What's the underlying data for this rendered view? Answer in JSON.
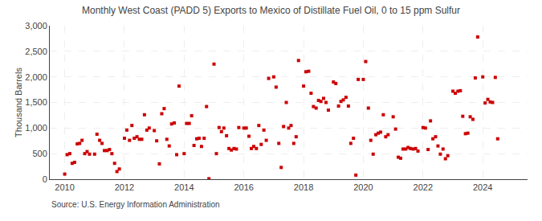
{
  "chart_data": {
    "type": "scatter",
    "title": "Monthly West Coast (PADD 5) Exports to Mexico of Distillate Fuel Oil, 0 to 15 ppm Sulfur",
    "ylabel": "Thousand Barrels",
    "source": "Source: U.S. Energy Information Administration",
    "color": "#cc0000",
    "marker": "square",
    "grid": true,
    "xlim": [
      2009.5,
      2025.5
    ],
    "xticks": [
      2010,
      2012,
      2014,
      2016,
      2018,
      2020,
      2022,
      2024
    ],
    "ylim": [
      0,
      3000
    ],
    "yticks": [
      0,
      500,
      {
        "value": 1000,
        "label": "1,000"
      },
      {
        "value": 1500,
        "label": "1,500"
      },
      {
        "value": 2000,
        "label": "2,000"
      },
      {
        "value": 2500,
        "label": "2,500"
      },
      {
        "value": 3000,
        "label": "3,000"
      }
    ],
    "x": [
      2010.0,
      2010.08,
      2010.17,
      2010.25,
      2010.33,
      2010.42,
      2010.5,
      2010.58,
      2010.67,
      2010.75,
      2010.83,
      2011.0,
      2011.08,
      2011.17,
      2011.25,
      2011.33,
      2011.42,
      2011.5,
      2011.58,
      2011.67,
      2011.75,
      2011.83,
      2012.0,
      2012.08,
      2012.17,
      2012.25,
      2012.33,
      2012.42,
      2012.5,
      2012.58,
      2012.67,
      2012.75,
      2012.83,
      2013.0,
      2013.08,
      2013.17,
      2013.25,
      2013.33,
      2013.42,
      2013.5,
      2013.58,
      2013.67,
      2013.75,
      2013.83,
      2014.0,
      2014.08,
      2014.17,
      2014.25,
      2014.33,
      2014.42,
      2014.5,
      2014.58,
      2014.67,
      2014.75,
      2014.83,
      2015.0,
      2015.08,
      2015.17,
      2015.25,
      2015.33,
      2015.42,
      2015.5,
      2015.58,
      2015.67,
      2015.75,
      2015.83,
      2016.0,
      2016.08,
      2016.17,
      2016.25,
      2016.33,
      2016.42,
      2016.5,
      2016.58,
      2016.67,
      2016.75,
      2016.83,
      2017.0,
      2017.08,
      2017.17,
      2017.25,
      2017.33,
      2017.42,
      2017.5,
      2017.58,
      2017.67,
      2017.75,
      2017.83,
      2018.0,
      2018.08,
      2018.17,
      2018.25,
      2018.33,
      2018.42,
      2018.5,
      2018.58,
      2018.67,
      2018.75,
      2018.83,
      2019.0,
      2019.08,
      2019.17,
      2019.25,
      2019.33,
      2019.42,
      2019.5,
      2019.58,
      2019.67,
      2019.75,
      2019.83,
      2020.0,
      2020.08,
      2020.17,
      2020.25,
      2020.33,
      2020.42,
      2020.5,
      2020.58,
      2020.67,
      2020.75,
      2020.83,
      2021.0,
      2021.08,
      2021.17,
      2021.25,
      2021.33,
      2021.42,
      2021.5,
      2021.58,
      2021.67,
      2021.75,
      2021.83,
      2022.0,
      2022.08,
      2022.17,
      2022.25,
      2022.33,
      2022.42,
      2022.5,
      2022.58,
      2022.67,
      2022.75,
      2022.83,
      2023.0,
      2023.08,
      2023.17,
      2023.25,
      2023.33,
      2023.42,
      2023.5,
      2023.58,
      2023.67,
      2023.75,
      2023.83,
      2024.0,
      2024.08,
      2024.17,
      2024.25,
      2024.33,
      2024.42,
      2024.5
    ],
    "values": [
      100,
      480,
      500,
      310,
      330,
      690,
      700,
      760,
      500,
      540,
      490,
      490,
      880,
      760,
      700,
      560,
      560,
      580,
      500,
      310,
      150,
      200,
      800,
      960,
      760,
      1050,
      800,
      830,
      780,
      780,
      1260,
      960,
      1000,
      950,
      750,
      300,
      1280,
      1380,
      780,
      650,
      1080,
      1100,
      480,
      1820,
      500,
      1090,
      1090,
      1240,
      660,
      790,
      800,
      640,
      800,
      1420,
      10,
      2250,
      500,
      1010,
      930,
      1000,
      850,
      600,
      570,
      600,
      590,
      1010,
      1000,
      1000,
      840,
      600,
      640,
      600,
      1050,
      680,
      960,
      760,
      1970,
      2000,
      1800,
      700,
      230,
      1030,
      1500,
      1000,
      1050,
      700,
      830,
      2320,
      1820,
      2100,
      2110,
      1680,
      1420,
      1390,
      1540,
      1520,
      1580,
      1500,
      1350,
      1900,
      1870,
      1430,
      1520,
      1550,
      1600,
      1430,
      700,
      800,
      80,
      1950,
      1950,
      2300,
      1390,
      760,
      490,
      870,
      900,
      920,
      1260,
      830,
      870,
      1220,
      980,
      430,
      410,
      590,
      590,
      620,
      600,
      590,
      600,
      550,
      1010,
      1000,
      580,
      1140,
      790,
      830,
      650,
      490,
      590,
      400,
      460,
      1720,
      1680,
      1720,
      1730,
      1230,
      890,
      900,
      1220,
      1170,
      1980,
      2780,
      2000,
      1490,
      1560,
      1510,
      1500,
      1990,
      790
    ]
  }
}
